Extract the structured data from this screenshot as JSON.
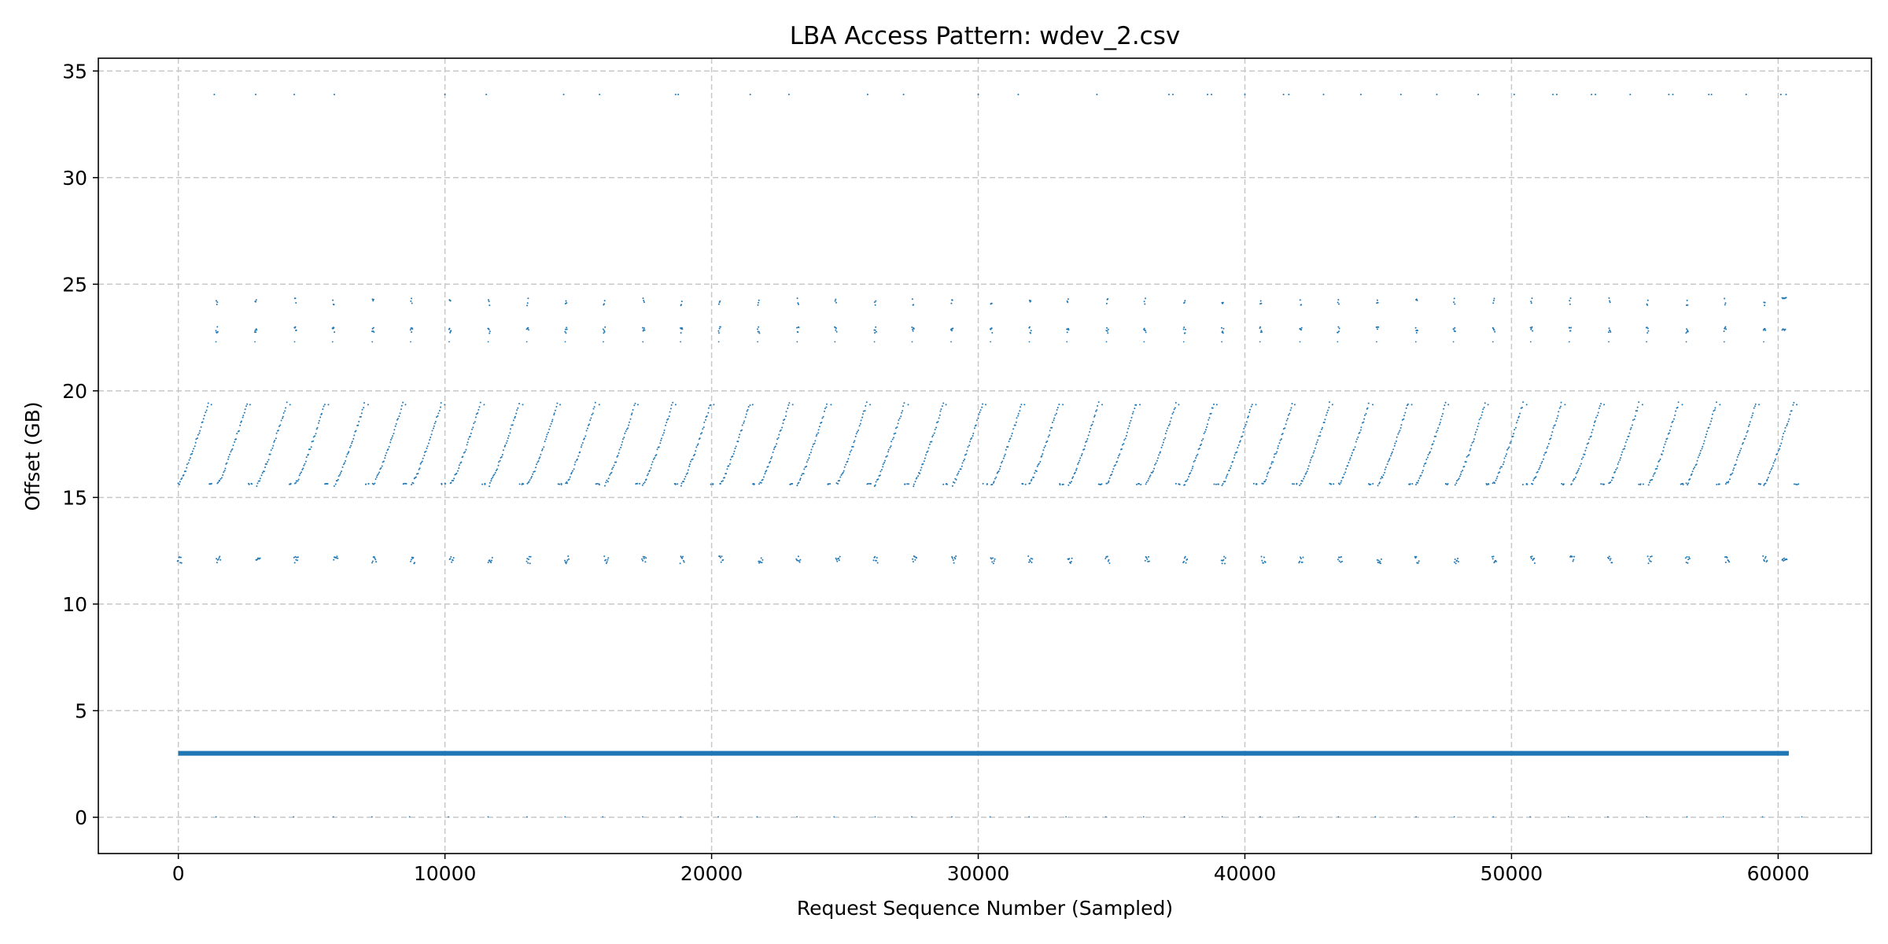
{
  "chart_data": {
    "type": "scatter",
    "title": "LBA Access Pattern: wdev_2.csv",
    "xlabel": "Request Sequence Number (Sampled)",
    "ylabel": "Offset (GB)",
    "xlim": [
      -3000,
      63500
    ],
    "ylim": [
      -1.7,
      35.6
    ],
    "xticks": [
      0,
      10000,
      20000,
      30000,
      40000,
      50000,
      60000
    ],
    "xtick_labels": [
      "0",
      "10000",
      "20000",
      "30000",
      "40000",
      "50000",
      "60000"
    ],
    "yticks": [
      0,
      5,
      10,
      15,
      20,
      25,
      30,
      35
    ],
    "ytick_labels": [
      "0",
      "5",
      "10",
      "15",
      "20",
      "25",
      "30",
      "35"
    ],
    "grid": true,
    "grid_style": "dashed",
    "point_color": "#1f77b4",
    "x_range": [
      0,
      60400
    ],
    "dense_band": {
      "offset_gb": 3.0
    },
    "cycle_period": 1450,
    "series": [
      {
        "pattern": "sequential-ramps",
        "period": 1450,
        "y_range": [
          15.6,
          19.4
        ],
        "points": [
          [
            0,
            15.6
          ],
          [
            145,
            15.6
          ],
          [
            290,
            15.75
          ],
          [
            435,
            16.0
          ],
          [
            580,
            16.4
          ],
          [
            725,
            17.0
          ],
          [
            870,
            17.5
          ],
          [
            1015,
            18.0
          ],
          [
            1160,
            18.5
          ],
          [
            1305,
            19.0
          ],
          [
            1380,
            19.4
          ]
        ]
      },
      {
        "pattern": "clusters",
        "period": 1450,
        "points": [
          [
            1450,
            24.2
          ],
          [
            1480,
            24.0
          ],
          [
            1500,
            22.8
          ],
          [
            1520,
            22.7
          ],
          [
            1460,
            22.3
          ],
          [
            1490,
            23.0
          ]
        ]
      },
      {
        "pattern": "clusters",
        "period": 1450,
        "points": [
          [
            0,
            12.0
          ],
          [
            30,
            12.1
          ],
          [
            60,
            12.0
          ],
          [
            90,
            12.2
          ],
          [
            120,
            11.9
          ]
        ]
      },
      {
        "pattern": "sparse",
        "points": [
          [
            1350,
            33.9
          ],
          [
            2900,
            33.9
          ],
          [
            4350,
            33.9
          ],
          [
            5850,
            33.9
          ],
          [
            10000,
            33.9
          ],
          [
            11550,
            33.9
          ],
          [
            14450,
            33.9
          ],
          [
            15800,
            33.9
          ],
          [
            18650,
            33.9
          ],
          [
            18750,
            33.9
          ],
          [
            21450,
            33.9
          ],
          [
            22900,
            33.9
          ],
          [
            25850,
            33.9
          ],
          [
            27200,
            33.9
          ],
          [
            30000,
            33.9
          ],
          [
            31500,
            33.9
          ],
          [
            34450,
            33.9
          ],
          [
            37150,
            33.9
          ],
          [
            37300,
            33.9
          ],
          [
            38600,
            33.9
          ],
          [
            38750,
            33.9
          ],
          [
            40000,
            33.9
          ],
          [
            41450,
            33.9
          ],
          [
            41650,
            33.9
          ],
          [
            42950,
            33.9
          ],
          [
            44350,
            33.9
          ],
          [
            45850,
            33.9
          ],
          [
            47200,
            33.9
          ],
          [
            48750,
            33.9
          ],
          [
            50100,
            33.9
          ],
          [
            51550,
            33.9
          ],
          [
            51700,
            33.9
          ],
          [
            53000,
            33.9
          ],
          [
            53150,
            33.9
          ],
          [
            54450,
            33.9
          ],
          [
            55900,
            33.9
          ],
          [
            56050,
            33.9
          ],
          [
            57400,
            33.9
          ],
          [
            57500,
            33.9
          ],
          [
            58800,
            33.9
          ],
          [
            60100,
            33.9
          ],
          [
            60300,
            33.9
          ]
        ]
      }
    ]
  }
}
